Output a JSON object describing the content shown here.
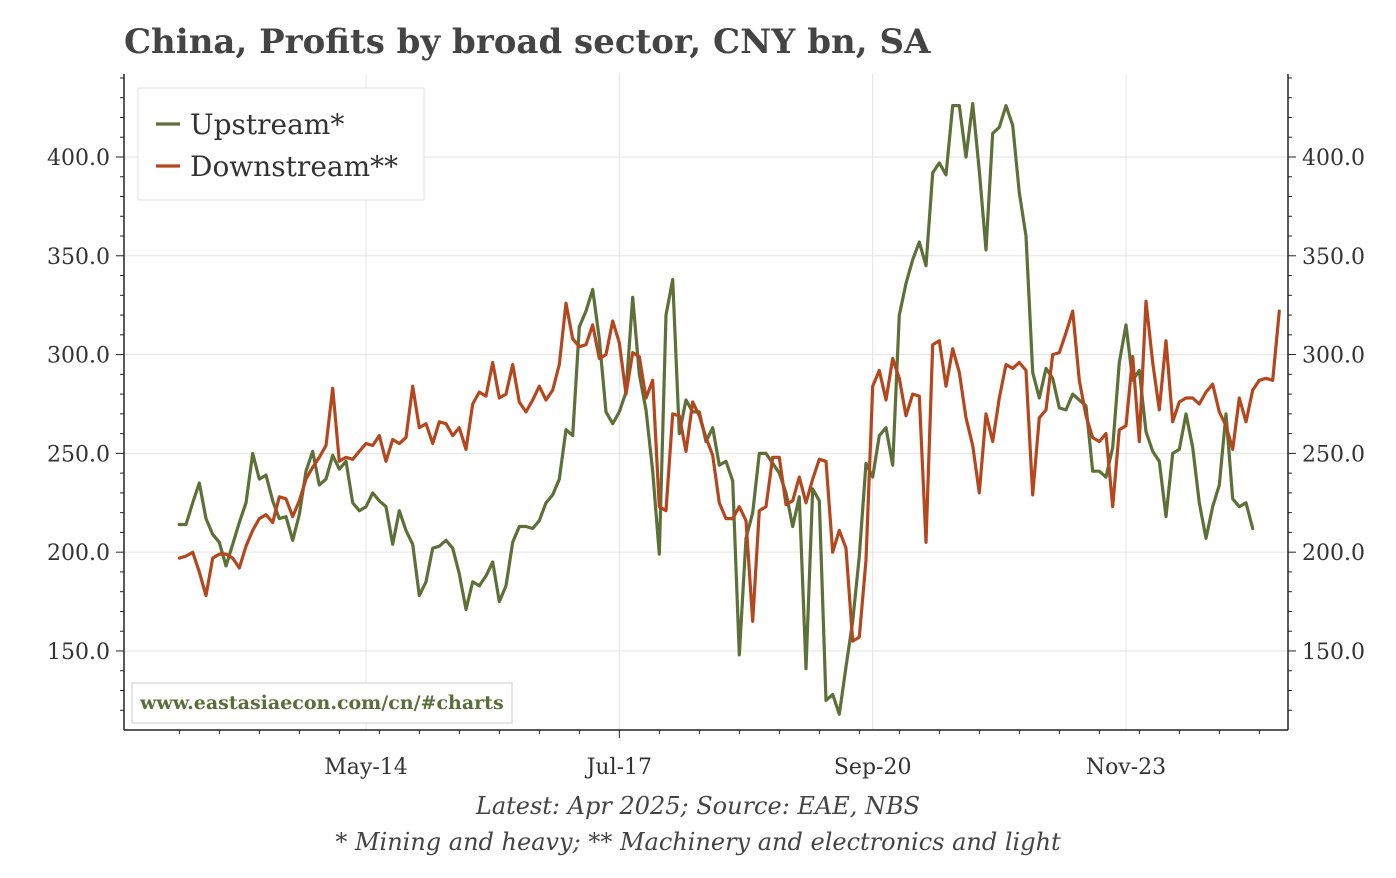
{
  "title": "China, Profits by broad sector, CNY bn, SA",
  "footnote1": "Latest: Apr 2025; Source: EAE, NBS",
  "footnote2": "* Mining and heavy; ** Machinery and electronics and light",
  "watermark": "www.eastasiaecon.com/cn/#charts",
  "colors": {
    "upstream": "#5d7038",
    "downstream": "#b5471f",
    "grid": "#e3e3e3",
    "axis": "#222222"
  },
  "chart_data": {
    "type": "line",
    "title": "China, Profits by broad sector, CNY bn, SA",
    "xlabel": "",
    "ylabel": "",
    "x_start": "2012-01",
    "frequency": "monthly",
    "x_ticks": [
      "May-14",
      "Jul-17",
      "Sep-20",
      "Nov-23"
    ],
    "y_ticks": [
      150.0,
      200.0,
      250.0,
      300.0,
      350.0,
      400.0
    ],
    "y_tick_labels": [
      "150.0",
      "200.0",
      "250.0",
      "300.0",
      "350.0",
      "400.0"
    ],
    "ylim": [
      110,
      442
    ],
    "grid": true,
    "legend": "top-left",
    "series": [
      {
        "name": "Upstream*",
        "values": [
          214,
          214,
          225,
          235,
          217,
          209,
          205,
          193,
          204,
          215,
          225,
          250,
          237,
          239,
          226,
          217,
          218,
          206,
          219,
          241,
          251,
          234,
          237,
          249,
          242,
          246,
          225,
          221,
          223,
          230,
          226,
          223,
          204,
          221,
          211,
          204,
          178,
          185,
          202,
          203,
          206,
          202,
          189,
          171,
          185,
          183,
          188,
          195,
          175,
          183,
          205,
          213,
          213,
          212,
          216,
          225,
          229,
          237,
          262,
          259,
          314,
          322,
          333,
          308,
          271,
          265,
          271,
          281,
          329,
          290,
          272,
          241,
          199,
          320,
          338,
          260,
          277,
          271,
          271,
          256,
          263,
          244,
          246,
          236,
          148,
          207,
          220,
          250,
          250,
          245,
          240,
          230,
          213,
          228,
          141,
          232,
          226,
          125,
          128,
          118,
          142,
          165,
          198,
          245,
          238,
          259,
          263,
          244,
          320,
          336,
          348,
          357,
          345,
          392,
          397,
          391,
          426,
          426,
          400,
          427,
          393,
          353,
          412,
          415,
          426,
          416,
          382,
          360,
          291,
          278,
          293,
          288,
          273,
          272,
          280,
          277,
          274,
          241,
          241,
          238,
          253,
          296,
          315,
          287,
          292,
          261,
          251,
          246,
          218,
          250,
          252,
          270,
          253,
          225,
          207,
          223,
          234,
          270,
          227,
          223,
          225,
          212
        ],
        "color": "#5d7038"
      },
      {
        "name": "Downstream**",
        "values": [
          197,
          198,
          200,
          190,
          178,
          197,
          199,
          199,
          197,
          192,
          203,
          211,
          217,
          219,
          215,
          228,
          227,
          218,
          226,
          237,
          243,
          248,
          254,
          283,
          246,
          248,
          247,
          251,
          255,
          254,
          259,
          246,
          257,
          255,
          258,
          284,
          263,
          265,
          255,
          266,
          265,
          259,
          263,
          252,
          275,
          281,
          279,
          296,
          278,
          280,
          295,
          276,
          271,
          277,
          284,
          277,
          282,
          295,
          326,
          308,
          304,
          305,
          315,
          298,
          300,
          317,
          306,
          280,
          301,
          299,
          278,
          287,
          223,
          221,
          270,
          269,
          251,
          276,
          269,
          258,
          249,
          225,
          217,
          217,
          223,
          216,
          165,
          221,
          223,
          248,
          248,
          224,
          226,
          238,
          225,
          237,
          247,
          246,
          200,
          211,
          202,
          155,
          157,
          196,
          284,
          292,
          277,
          298,
          288,
          269,
          280,
          279,
          205,
          305,
          307,
          284,
          303,
          291,
          268,
          254,
          230,
          270,
          256,
          278,
          295,
          293,
          296,
          292,
          229,
          268,
          272,
          300,
          301,
          311,
          322,
          287,
          269,
          258,
          256,
          260,
          223,
          262,
          264,
          299,
          256,
          327,
          296,
          272,
          307,
          266,
          276,
          278,
          278,
          275,
          281,
          285,
          271,
          264,
          252,
          278,
          266,
          282,
          287,
          288,
          287,
          322
        ],
        "color": "#b5471f"
      }
    ]
  }
}
